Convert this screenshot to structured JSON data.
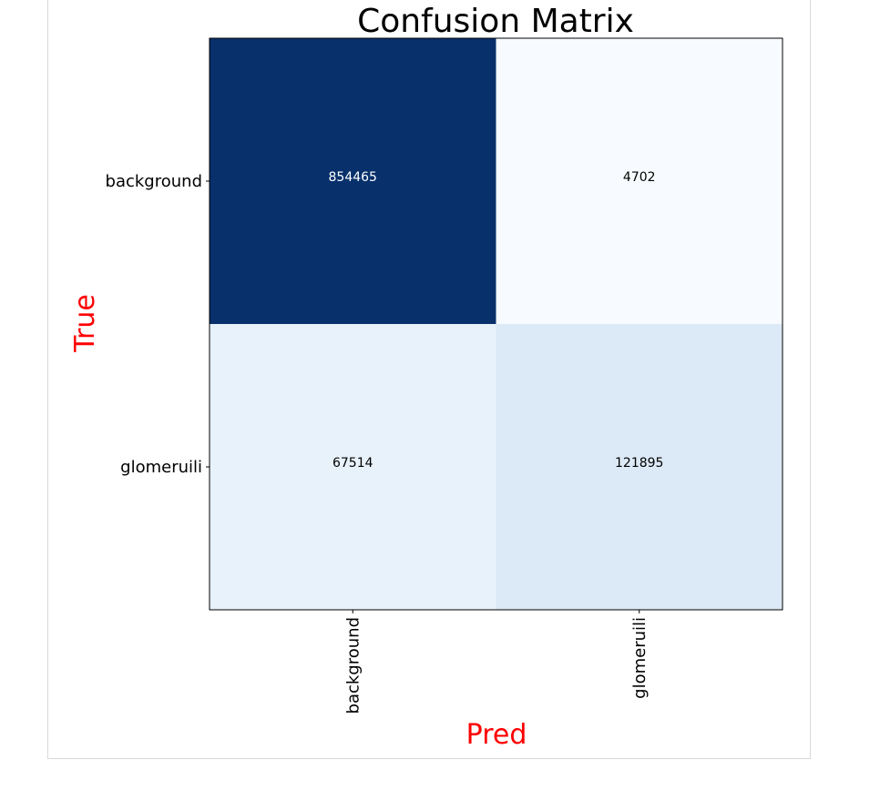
{
  "chart_data": {
    "type": "heatmap",
    "title": "Confusion Matrix",
    "xlabel": "Pred",
    "ylabel": "True",
    "x_categories": [
      "background",
      "glomeruili"
    ],
    "y_categories": [
      "background",
      "glomeruili"
    ],
    "values": [
      [
        854465,
        4702
      ],
      [
        67514,
        121895
      ]
    ],
    "colormap": "Blues",
    "axis_label_color": "#ff0000",
    "grid": false
  }
}
